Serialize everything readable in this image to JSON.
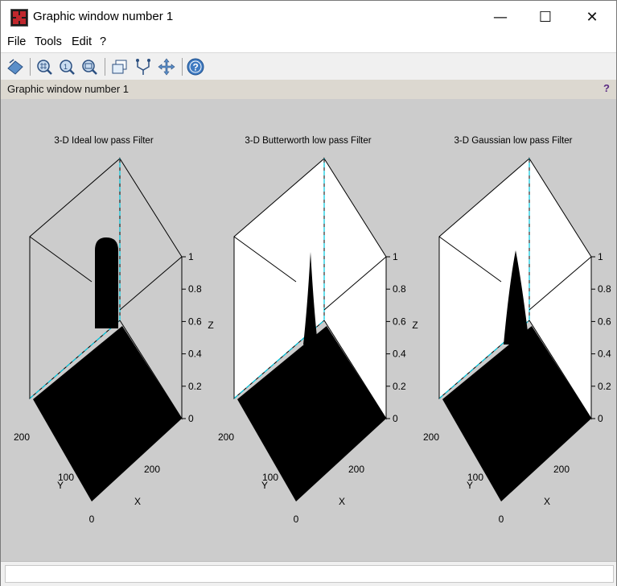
{
  "window": {
    "title": "Graphic window number 1",
    "controls": {
      "minimize": "—",
      "maximize": "☐",
      "close": "✕"
    }
  },
  "menu": [
    "File",
    "Tools",
    "Edit",
    "?"
  ],
  "toolbar": {
    "icons": [
      "rotate-icon",
      "zoom-region-icon",
      "zoom-reset-icon",
      "zoom-out-icon",
      "new-window-icon",
      "datatip-icon",
      "pan-icon",
      "help-icon"
    ]
  },
  "infobar": {
    "text": "Graphic window number 1",
    "help": "?"
  },
  "plots": [
    {
      "title": "3-D Ideal low pass Filter",
      "shape": "ideal"
    },
    {
      "title": "3-D Butterworth low pass Filter",
      "shape": "butterworth"
    },
    {
      "title": "3-D Gaussian low pass Filter",
      "shape": "gaussian"
    }
  ],
  "axes": {
    "z_ticks": [
      "1",
      "0.8",
      "0.6",
      "0.4",
      "0.2",
      "0"
    ],
    "z_label": "Z",
    "y_ticks": [
      "200",
      "100"
    ],
    "y_label": "Y",
    "x_ticks": [
      "200",
      "0"
    ],
    "x_label": "X"
  },
  "colors": {
    "canvas": "#cccccc",
    "surface": "#000000",
    "hidden_edge": "#00c8e0"
  }
}
